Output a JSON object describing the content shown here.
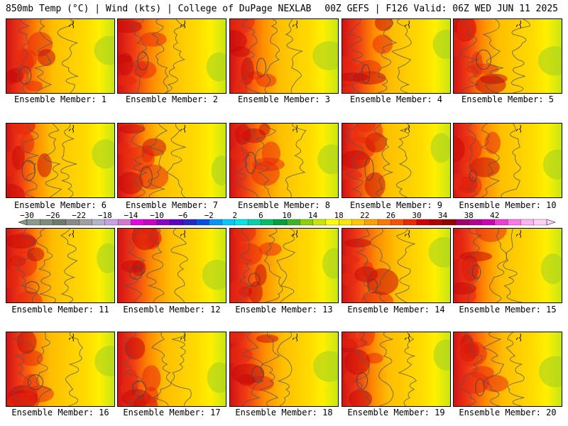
{
  "header": {
    "left": "850mb Temp (°C) | Wind (kts) | College of DuPage NEXLAB",
    "right": "00Z GEFS | F126 Valid: 06Z WED JUN 11 2025"
  },
  "member_prefix": "Ensemble Member: ",
  "members": [
    {
      "label": "Ensemble Member: 1",
      "number": 1,
      "hot_level": 0.75
    },
    {
      "label": "Ensemble Member: 2",
      "number": 2,
      "hot_level": 0.85
    },
    {
      "label": "Ensemble Member: 3",
      "number": 3,
      "hot_level": 0.8
    },
    {
      "label": "Ensemble Member: 4",
      "number": 4,
      "hot_level": 0.8
    },
    {
      "label": "Ensemble Member: 5",
      "number": 5,
      "hot_level": 0.7
    },
    {
      "label": "Ensemble Member: 6",
      "number": 6,
      "hot_level": 0.7
    },
    {
      "label": "Ensemble Member: 7",
      "number": 7,
      "hot_level": 0.65
    },
    {
      "label": "Ensemble Member: 8",
      "number": 8,
      "hot_level": 0.8
    },
    {
      "label": "Ensemble Member: 9",
      "number": 9,
      "hot_level": 0.7
    },
    {
      "label": "Ensemble Member: 10",
      "number": 10,
      "hot_level": 0.75
    },
    {
      "label": "Ensemble Member: 11",
      "number": 11,
      "hot_level": 0.75
    },
    {
      "label": "Ensemble Member: 12",
      "number": 12,
      "hot_level": 0.85
    },
    {
      "label": "Ensemble Member: 13",
      "number": 13,
      "hot_level": 0.8
    },
    {
      "label": "Ensemble Member: 14",
      "number": 14,
      "hot_level": 0.85
    },
    {
      "label": "Ensemble Member: 15",
      "number": 15,
      "hot_level": 0.75
    },
    {
      "label": "Ensemble Member: 16",
      "number": 16,
      "hot_level": 0.7
    },
    {
      "label": "Ensemble Member: 17",
      "number": 17,
      "hot_level": 0.75
    },
    {
      "label": "Ensemble Member: 18",
      "number": 18,
      "hot_level": 0.85
    },
    {
      "label": "Ensemble Member: 19",
      "number": 19,
      "hot_level": 0.75
    },
    {
      "label": "Ensemble Member: 20",
      "number": 20,
      "hot_level": 0.8
    }
  ],
  "colorbar": {
    "unit": "°C",
    "tick_labels": [
      "−30",
      "−26",
      "−22",
      "−18",
      "−14",
      "−10",
      "−6",
      "−2",
      "2",
      "6",
      "10",
      "14",
      "18",
      "22",
      "26",
      "30",
      "34",
      "38",
      "42"
    ],
    "colors": [
      "#8c9a8c",
      "#7d8c7d",
      "#6e7a6e",
      "#8a8a8a",
      "#a0a0a0",
      "#b4b4c8",
      "#c8a0e6",
      "#d27ad2",
      "#e600e6",
      "#c800c8",
      "#8c00c8",
      "#5a00c8",
      "#2828c8",
      "#0050e6",
      "#0096ff",
      "#00c8ff",
      "#00e6e6",
      "#00d2aa",
      "#00be64",
      "#00a03c",
      "#3cb428",
      "#8cd200",
      "#c8e600",
      "#ffff00",
      "#ffe600",
      "#ffc800",
      "#ffa000",
      "#ff7800",
      "#ff5000",
      "#f02800",
      "#d20000",
      "#b40000",
      "#960000",
      "#a0006e",
      "#b4008c",
      "#d200b4",
      "#f03cd2",
      "#ff78e6",
      "#ffb4f0",
      "#ffd2f5"
    ]
  }
}
